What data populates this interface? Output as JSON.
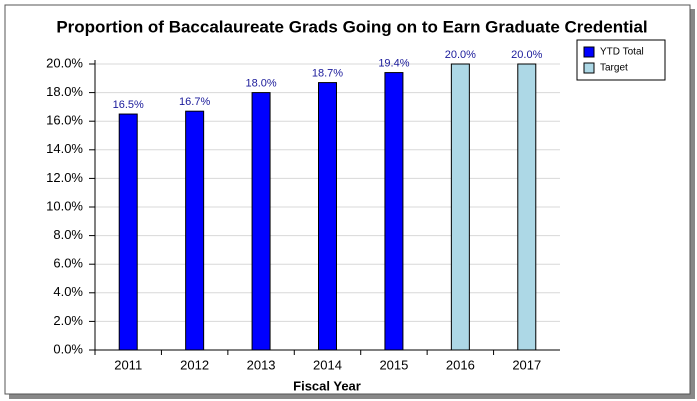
{
  "chart_data": {
    "type": "bar",
    "title": "Proportion of Baccalaureate Grads Going on to Earn Graduate Credential",
    "x_label": "Fiscal Year",
    "categories": [
      "2011",
      "2012",
      "2013",
      "2014",
      "2015",
      "2016",
      "2017"
    ],
    "series": [
      {
        "name": "YTD Total",
        "color": "#0000ff",
        "values": [
          16.5,
          16.7,
          18.0,
          18.7,
          19.4,
          null,
          null
        ],
        "value_labels": [
          "16.5%",
          "16.7%",
          "18.0%",
          "18.7%",
          "19.4%",
          null,
          null
        ]
      },
      {
        "name": "Target",
        "color": "#add8e6",
        "values": [
          null,
          null,
          null,
          null,
          null,
          20.0,
          20.0
        ],
        "value_labels": [
          null,
          null,
          null,
          null,
          null,
          "20.0%",
          "20.0%"
        ]
      }
    ],
    "ylim": [
      0,
      20
    ],
    "yticks": [
      {
        "value": 0,
        "label": "0.0%"
      },
      {
        "value": 2,
        "label": "2.0%"
      },
      {
        "value": 4,
        "label": "4.0%"
      },
      {
        "value": 6,
        "label": "6.0%"
      },
      {
        "value": 8,
        "label": "8.0%"
      },
      {
        "value": 10,
        "label": "10.0%"
      },
      {
        "value": 12,
        "label": "12.0%"
      },
      {
        "value": 14,
        "label": "14.0%"
      },
      {
        "value": 16,
        "label": "16.0%"
      },
      {
        "value": 18,
        "label": "18.0%"
      },
      {
        "value": 20,
        "label": "20.0%"
      }
    ],
    "grid": true,
    "legend": "top-right"
  }
}
